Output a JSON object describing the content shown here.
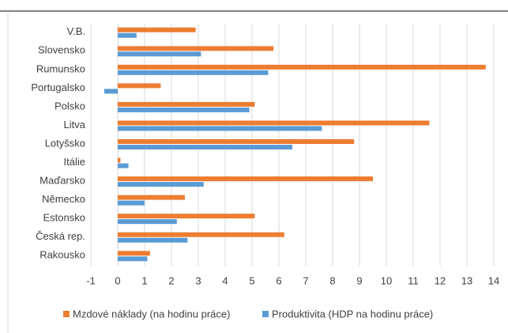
{
  "chart_data": {
    "type": "hbar",
    "categories": [
      "V.B.",
      "Slovensko",
      "Rumunsko",
      "Portugalsko",
      "Polsko",
      "Litva",
      "Lotyšsko",
      "Itálie",
      "Maďarsko",
      "Německo",
      "Estonsko",
      "Česká rep.",
      "Rakousko"
    ],
    "series": [
      {
        "name": "Mzdové náklady (na hodinu práce)",
        "color": "#ed7d31",
        "values": [
          2.9,
          5.8,
          13.7,
          1.6,
          5.1,
          11.6,
          8.8,
          0.1,
          9.5,
          2.5,
          5.1,
          6.2,
          1.2
        ]
      },
      {
        "name": "Produktivita (HDP na hodinu práce)",
        "color": "#5b9bd5",
        "values": [
          0.7,
          3.1,
          5.6,
          -0.5,
          4.9,
          7.6,
          6.5,
          0.4,
          3.2,
          1.0,
          2.2,
          2.6,
          1.1
        ]
      }
    ],
    "xlim": [
      -1,
      14
    ],
    "xticks": [
      -1,
      0,
      1,
      2,
      3,
      4,
      5,
      6,
      7,
      8,
      9,
      10,
      11,
      12,
      13,
      14
    ],
    "grid": true,
    "legend": "bottom"
  }
}
